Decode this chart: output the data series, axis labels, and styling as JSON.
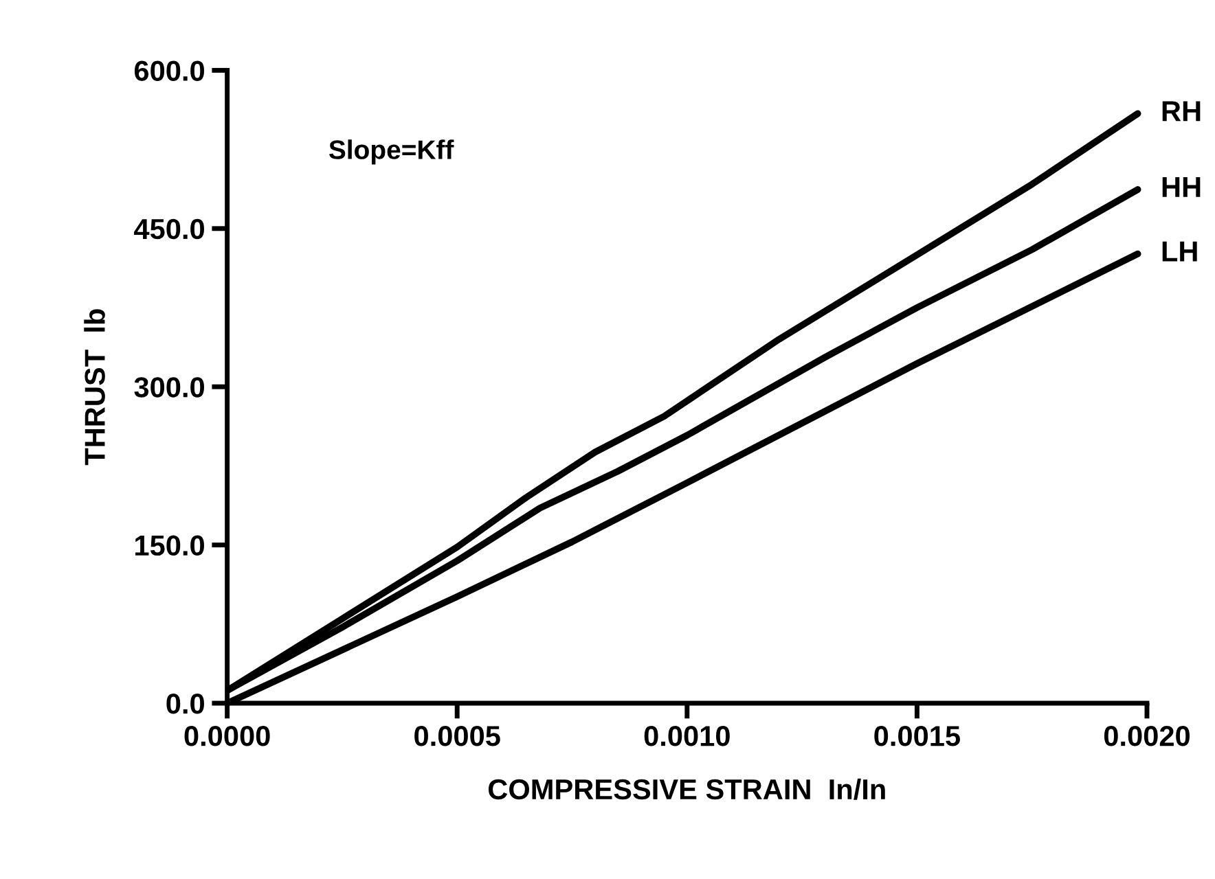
{
  "chart_data": {
    "type": "line",
    "xlabel": "COMPRESSIVE STRAIN  In/In",
    "ylabel": "THRUST  lb",
    "annotations": [
      "Slope=Kff"
    ],
    "xlim": [
      0,
      0.002
    ],
    "ylim": [
      0,
      600
    ],
    "xticks": [
      {
        "value": 0,
        "label": "0.0000"
      },
      {
        "value": 0.0005,
        "label": "0.0005"
      },
      {
        "value": 0.001,
        "label": "0.0010"
      },
      {
        "value": 0.0015,
        "label": "0.0015"
      },
      {
        "value": 0.002,
        "label": "0.0020"
      }
    ],
    "yticks": [
      {
        "value": 0,
        "label": "0.0"
      },
      {
        "value": 150,
        "label": "150.0"
      },
      {
        "value": 300,
        "label": "300.0"
      },
      {
        "value": 450,
        "label": "450.0"
      },
      {
        "value": 600,
        "label": "600.0"
      }
    ],
    "grid": false,
    "legend": false,
    "marker": "none",
    "line_style": "solid",
    "series": [
      {
        "name": "RH",
        "color": "#000000",
        "x": [
          0,
          0.00025,
          0.0005,
          0.00065,
          0.0008,
          0.00095,
          0.0012,
          0.0015,
          0.00175,
          0.00198
        ],
        "values": [
          12,
          80,
          148,
          195,
          238,
          272,
          345,
          425,
          492,
          559
        ]
      },
      {
        "name": "HH",
        "color": "#000000",
        "x": [
          0,
          0.00025,
          0.0005,
          0.00068,
          0.00085,
          0.001,
          0.0013,
          0.0015,
          0.00175,
          0.00198
        ],
        "values": [
          12,
          72,
          135,
          185,
          220,
          254,
          328,
          375,
          430,
          487
        ]
      },
      {
        "name": "LH",
        "color": "#000000",
        "x": [
          0,
          0.0005,
          0.00075,
          0.001,
          0.0015,
          0.00198
        ],
        "values": [
          0,
          101,
          153,
          209,
          322,
          426
        ]
      }
    ]
  }
}
